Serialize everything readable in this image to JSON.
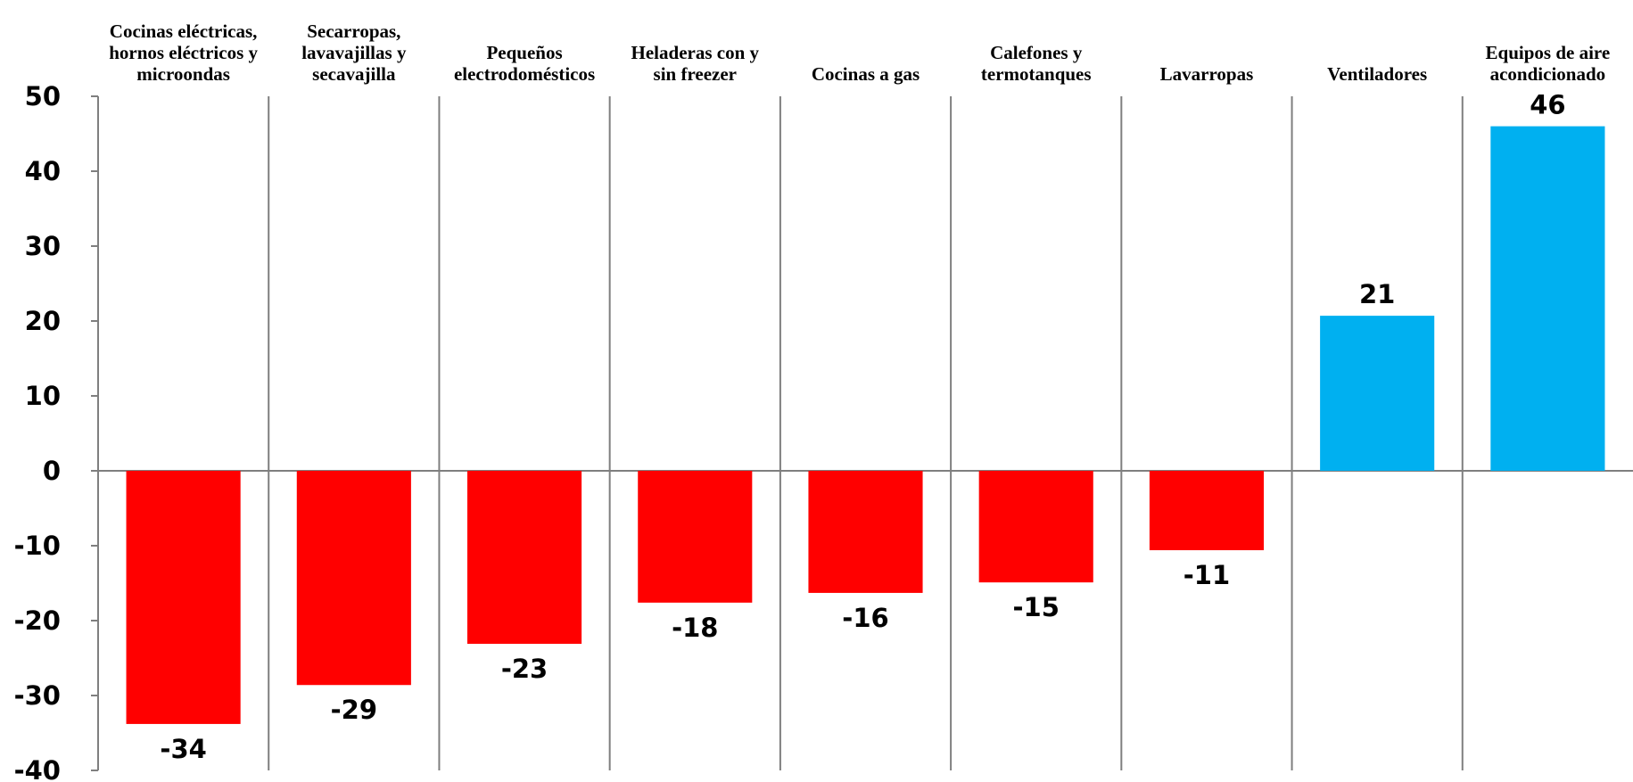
{
  "chart_data": {
    "type": "bar",
    "title": "",
    "xlabel": "",
    "ylabel": "",
    "ylim": [
      -40,
      50
    ],
    "yticks": [
      50,
      40,
      30,
      20,
      10,
      0,
      -10,
      -20,
      -30,
      -40
    ],
    "categories": [
      [
        "Cocinas eléctricas,",
        "hornos eléctricos y",
        "microondas"
      ],
      [
        "Secarropas,",
        "lavavajillas y",
        "secavajilla"
      ],
      [
        "Pequeños",
        "electrodomésticos"
      ],
      [
        "Heladeras con y",
        "sin freezer"
      ],
      [
        "Cocinas a gas"
      ],
      [
        "Calefones y",
        "termotanques"
      ],
      [
        "Lavarropas"
      ],
      [
        "Ventiladores"
      ],
      [
        "Equipos de aire",
        "acondicionado"
      ]
    ],
    "values": [
      -33.8,
      -28.6,
      -23.1,
      -17.6,
      -16.3,
      -14.9,
      -10.6,
      20.7,
      46.0
    ],
    "data_labels": [
      "-34",
      "-29",
      "-23",
      "-18",
      "-16",
      "-15",
      "-11",
      "21",
      "46"
    ],
    "negative_color": "#ff0000",
    "positive_color": "#00b0f0",
    "grid": false,
    "legend": "none"
  }
}
